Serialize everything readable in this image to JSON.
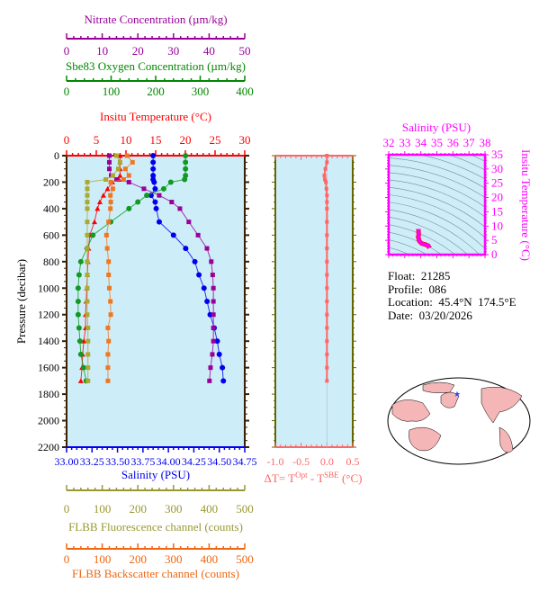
{
  "chart_data": [
    {
      "type": "line",
      "ylabel": "Pressure (decibar)",
      "ylim": [
        0,
        2200
      ],
      "y_inverted": true,
      "yticks": [
        0,
        200,
        400,
        600,
        800,
        1000,
        1200,
        1400,
        1600,
        1800,
        2000,
        2200
      ],
      "pressure": [
        0,
        50,
        100,
        150,
        180,
        200,
        250,
        300,
        350,
        400,
        500,
        600,
        700,
        800,
        900,
        1000,
        1100,
        1200,
        1300,
        1400,
        1500,
        1600,
        1700
      ],
      "axes": {
        "nitrate": {
          "label": "Nitrate Concentration (µm/kg)",
          "range": [
            0,
            50
          ],
          "ticks": [
            0,
            10,
            20,
            30,
            40,
            50
          ],
          "color": "#990099"
        },
        "oxygen": {
          "label": "Sbe83 Oxygen Concentration (µm/kg)",
          "range": [
            0,
            400
          ],
          "ticks": [
            0,
            100,
            200,
            300,
            400
          ],
          "color": "#008800"
        },
        "temperature": {
          "label": "Insitu Temperature (°C)",
          "range": [
            0,
            30
          ],
          "ticks": [
            0,
            5,
            10,
            15,
            20,
            25,
            30
          ],
          "color": "#ff0000"
        },
        "salinity": {
          "label": "Salinity (PSU)",
          "range": [
            33.0,
            34.75
          ],
          "ticks": [
            "33.00",
            "33.25",
            "33.50",
            "33.75",
            "34.00",
            "34.25",
            "34.50",
            "34.75"
          ],
          "color": "#0000ee"
        },
        "fluorescence": {
          "label": "FLBB Fluorescence channel (counts)",
          "range": [
            0,
            500
          ],
          "ticks": [
            0,
            100,
            200,
            300,
            400,
            500
          ],
          "color": "#999933"
        },
        "backscatter": {
          "label": "FLBB Backscatter channel (counts)",
          "range": [
            0,
            500
          ],
          "ticks": [
            0,
            100,
            200,
            300,
            400,
            500
          ],
          "color": "#ee6611"
        }
      },
      "series": [
        {
          "axis": "temperature",
          "color": "#ff0000",
          "marker": "triangle",
          "values": [
            9,
            9,
            9,
            9,
            8.8,
            7.7,
            6.9,
            6.2,
            5.6,
            5.2,
            4.7,
            3.9,
            3.7,
            3.6,
            3.5,
            3.4,
            3.3,
            3.2,
            3.2,
            2.9,
            2.7,
            2.6,
            2.4
          ]
        },
        {
          "axis": "salinity",
          "color": "#0000ee",
          "marker": "circle",
          "values": [
            33.85,
            33.85,
            33.85,
            33.85,
            33.85,
            33.86,
            33.87,
            33.83,
            33.87,
            33.88,
            33.91,
            34.05,
            34.17,
            34.26,
            34.3,
            34.35,
            34.38,
            34.41,
            34.45,
            34.48,
            34.5,
            34.53,
            34.54
          ]
        },
        {
          "axis": "nitrate",
          "color": "#990099",
          "marker": "square",
          "values": [
            12,
            12,
            12,
            12.5,
            14,
            17.5,
            21.7,
            26,
            29.5,
            31.8,
            34.3,
            36.9,
            39.4,
            40.6,
            41,
            41.2,
            41.2,
            41.2,
            41.2,
            41.2,
            40.9,
            40.4,
            40.1
          ]
        },
        {
          "axis": "oxygen",
          "color": "#119922",
          "marker": "circle",
          "values": [
            267,
            267,
            267,
            267,
            265,
            234,
            218,
            180,
            160,
            140,
            99,
            59,
            46,
            32,
            28,
            26,
            26,
            26,
            28,
            30,
            32,
            38,
            44
          ]
        },
        {
          "axis": "fluorescence",
          "color": "#aaaa33",
          "marker": "square",
          "values": [
            140,
            150,
            145,
            130,
            110,
            58,
            58,
            58,
            58,
            58,
            58,
            58,
            58,
            58,
            58,
            58,
            58,
            58,
            60,
            60,
            60,
            60,
            60
          ]
        },
        {
          "axis": "backscatter",
          "color": "#ee7722",
          "marker": "square",
          "values": [
            170,
            185,
            165,
            175,
            160,
            124,
            130,
            123,
            124,
            123,
            118,
            112,
            114,
            118,
            118,
            120,
            123,
            124,
            116,
            118,
            116,
            116,
            116
          ]
        }
      ]
    },
    {
      "type": "line",
      "xlabel": "ΔT= T",
      "xlabel_sup1": "Opt",
      "xlabel_mid": " - T",
      "xlabel_sup2": "SBE",
      "xlabel_end": " (°C)",
      "xlim": [
        -1.0,
        0.5
      ],
      "xticks": [
        "-1.0",
        "-0.5",
        "0.0",
        "0.5"
      ],
      "color": "#ff6666",
      "values": [
        0,
        0,
        -0.03,
        -0.05,
        -0.04,
        -0.02,
        -0.01,
        0,
        0,
        0,
        0,
        0,
        0,
        0,
        0,
        0,
        0,
        0,
        0,
        0,
        0,
        0,
        0
      ]
    },
    {
      "type": "scatter",
      "xlabel": "Salinity (PSU)",
      "ylabel": "Insitu Temperature (°C)",
      "xlim": [
        32,
        38
      ],
      "ylim": [
        0,
        35
      ],
      "xticks": [
        32,
        33,
        34,
        35,
        36,
        37,
        38
      ],
      "yticks": [
        0,
        5,
        10,
        15,
        20,
        25,
        30,
        35
      ],
      "color": "#ff00ff"
    }
  ],
  "info": {
    "float": "Float:  21285",
    "profile": "Profile:  086",
    "location": "Location:  45.4°N  174.5°E",
    "date": "Date:  03/20/2026"
  },
  "map": {
    "marker_color": "#2244ff",
    "land_color": "#f4b6b6",
    "ocean_color": "#ffffff"
  }
}
